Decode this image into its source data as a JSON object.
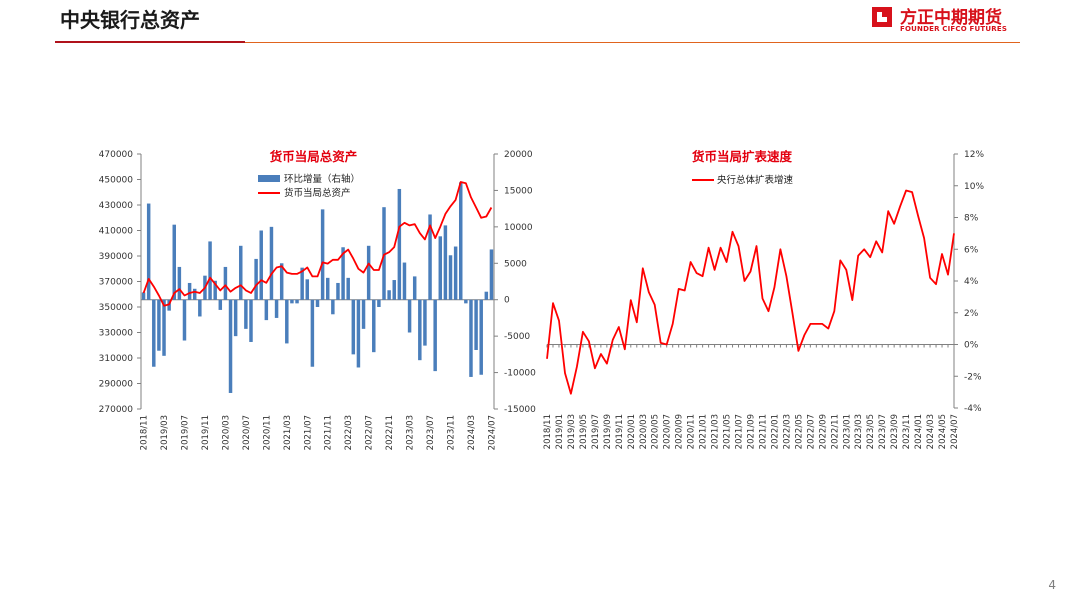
{
  "page": {
    "title": "中央银行总资产",
    "page_number": "4"
  },
  "logo": {
    "name_cn": "方正中期期货",
    "name_en": "FOUNDER CIFCO FUTURES",
    "brand_color": "#d7111b"
  },
  "colors": {
    "bar": "#4a7ebb",
    "line": "#ff0000",
    "title_red": "#e3000f",
    "rule_dark": "#b0121b",
    "rule_light": "#e0641e"
  },
  "x_tick_labels": [
    "2018/11",
    "2019/03",
    "2019/07",
    "2019/11",
    "2020/03",
    "2020/07",
    "2020/11",
    "2021/03",
    "2021/07",
    "2021/11",
    "2022/03",
    "2022/07",
    "2022/11",
    "2023/03",
    "2023/07",
    "2023/11",
    "2024/03",
    "2024/07"
  ],
  "x_tick_labels_right": [
    "2018/11",
    "2019/01",
    "2019/03",
    "2019/05",
    "2019/07",
    "2019/09",
    "2019/11",
    "2020/01",
    "2020/03",
    "2020/05",
    "2020/07",
    "2020/09",
    "2020/11",
    "2021/01",
    "2021/03",
    "2021/05",
    "2021/07",
    "2021/09",
    "2021/11",
    "2022/01",
    "2022/03",
    "2022/05",
    "2022/07",
    "2022/09",
    "2022/11",
    "2023/01",
    "2023/03",
    "2023/05",
    "2023/07",
    "2023/09",
    "2023/11",
    "2024/01",
    "2024/03",
    "2024/05",
    "2024/07"
  ],
  "chart_data": [
    {
      "type": "bar",
      "title": "货币当局总资产",
      "legend_position": "top-center",
      "grid": false,
      "x": [
        "2018/11",
        "2018/12",
        "2019/01",
        "2019/02",
        "2019/03",
        "2019/04",
        "2019/05",
        "2019/06",
        "2019/07",
        "2019/08",
        "2019/09",
        "2019/10",
        "2019/11",
        "2019/12",
        "2020/01",
        "2020/02",
        "2020/03",
        "2020/04",
        "2020/05",
        "2020/06",
        "2020/07",
        "2020/08",
        "2020/09",
        "2020/10",
        "2020/11",
        "2020/12",
        "2021/01",
        "2021/02",
        "2021/03",
        "2021/04",
        "2021/05",
        "2021/06",
        "2021/07",
        "2021/08",
        "2021/09",
        "2021/10",
        "2021/11",
        "2021/12",
        "2022/01",
        "2022/02",
        "2022/03",
        "2022/04",
        "2022/05",
        "2022/06",
        "2022/07",
        "2022/08",
        "2022/09",
        "2022/10",
        "2022/11",
        "2022/12",
        "2023/01",
        "2023/02",
        "2023/03",
        "2023/04",
        "2023/05",
        "2023/06",
        "2023/07",
        "2023/08",
        "2023/09",
        "2023/10",
        "2023/11",
        "2023/12",
        "2024/01",
        "2024/02",
        "2024/03",
        "2024/04",
        "2024/05",
        "2024/06",
        "2024/07"
      ],
      "y_left": {
        "min": 270000,
        "max": 470000,
        "ticks": [
          "470000",
          "450000",
          "430000",
          "410000",
          "390000",
          "370000",
          "350000",
          "330000",
          "310000",
          "290000",
          "270000"
        ]
      },
      "y_right": {
        "min": -15000,
        "max": 20000,
        "ticks": [
          "20000",
          "15000",
          "10000",
          "5000",
          "0",
          "-5000",
          "-10000",
          "-15000"
        ]
      },
      "series": [
        {
          "name": "环比增量（右轴）",
          "type": "bar",
          "axis": "right",
          "values": [
            1000,
            13200,
            -9200,
            -7000,
            -7700,
            -1500,
            10300,
            4500,
            -5600,
            2300,
            1500,
            -2300,
            3300,
            8000,
            2600,
            -1400,
            4500,
            -12800,
            -5000,
            7400,
            -4000,
            -5800,
            5600,
            9500,
            -2800,
            10000,
            -2500,
            5000,
            -6000,
            -500,
            -500,
            4400,
            2800,
            -9200,
            -1000,
            12400,
            3000,
            -2000,
            2300,
            7200,
            3000,
            -7500,
            -9300,
            -4000,
            7400,
            -7200,
            -1000,
            12700,
            1300,
            2700,
            15200,
            5100,
            -4500,
            3200,
            -8300,
            -6300,
            11700,
            -9800,
            8700,
            10200,
            6100,
            7300,
            16100,
            -500,
            -10600,
            -6900,
            -10300,
            1100,
            6900
          ]
        },
        {
          "name": "货币当局总资产",
          "type": "line",
          "axis": "left",
          "values": [
            361000,
            372000,
            366000,
            359000,
            351000,
            352000,
            361000,
            364000,
            359000,
            361000,
            362000,
            361000,
            365000,
            373000,
            368000,
            363000,
            367000,
            362000,
            365000,
            367000,
            363000,
            361000,
            367000,
            371000,
            369000,
            376000,
            381000,
            382000,
            377000,
            376000,
            376000,
            378000,
            381000,
            374000,
            374000,
            385000,
            384000,
            387000,
            387000,
            392000,
            395000,
            388000,
            380000,
            377000,
            384000,
            379000,
            379000,
            391000,
            393000,
            397000,
            413000,
            416000,
            414000,
            415000,
            408000,
            403000,
            414000,
            404000,
            413000,
            423000,
            429000,
            434000,
            448000,
            447000,
            436000,
            428000,
            420000,
            421000,
            428000
          ]
        }
      ]
    },
    {
      "type": "line",
      "title": "货币当局扩表速度",
      "legend_position": "top-center",
      "grid": false,
      "x": [
        "2018/11",
        "2018/12",
        "2019/01",
        "2019/02",
        "2019/03",
        "2019/04",
        "2019/05",
        "2019/06",
        "2019/07",
        "2019/08",
        "2019/09",
        "2019/10",
        "2019/11",
        "2019/12",
        "2020/01",
        "2020/02",
        "2020/03",
        "2020/04",
        "2020/05",
        "2020/06",
        "2020/07",
        "2020/08",
        "2020/09",
        "2020/10",
        "2020/11",
        "2020/12",
        "2021/01",
        "2021/02",
        "2021/03",
        "2021/04",
        "2021/05",
        "2021/06",
        "2021/07",
        "2021/08",
        "2021/09",
        "2021/10",
        "2021/11",
        "2021/12",
        "2022/01",
        "2022/02",
        "2022/03",
        "2022/04",
        "2022/05",
        "2022/06",
        "2022/07",
        "2022/08",
        "2022/09",
        "2022/10",
        "2022/11",
        "2022/12",
        "2023/01",
        "2023/02",
        "2023/03",
        "2023/04",
        "2023/05",
        "2023/06",
        "2023/07",
        "2023/08",
        "2023/09",
        "2023/10",
        "2023/11",
        "2023/12",
        "2024/01",
        "2024/02",
        "2024/03",
        "2024/04",
        "2024/05",
        "2024/06",
        "2024/07"
      ],
      "y": {
        "min": -4,
        "max": 12,
        "unit": "%",
        "ticks": [
          "12%",
          "10%",
          "8%",
          "6%",
          "4%",
          "2%",
          "0%",
          "-2%",
          "-4%"
        ]
      },
      "series": [
        {
          "name": "央行总体扩表增速",
          "values": [
            -0.9,
            2.6,
            1.5,
            -1.8,
            -3.1,
            -1.4,
            0.8,
            0.2,
            -1.5,
            -0.6,
            -1.2,
            0.3,
            1.1,
            -0.3,
            2.8,
            1.4,
            4.8,
            3.3,
            2.5,
            0.1,
            0.0,
            1.3,
            3.5,
            3.4,
            5.2,
            4.5,
            4.3,
            6.1,
            4.7,
            6.1,
            5.2,
            7.1,
            6.2,
            4.0,
            4.6,
            6.2,
            2.9,
            2.1,
            3.6,
            6.0,
            4.3,
            2.0,
            -0.4,
            0.6,
            1.3,
            1.3,
            1.3,
            1.0,
            2.1,
            5.3,
            4.7,
            2.8,
            5.6,
            6.0,
            5.5,
            6.5,
            5.8,
            8.4,
            7.6,
            8.7,
            9.7,
            9.6,
            8.1,
            6.7,
            4.2,
            3.8,
            5.7,
            4.4,
            7.0
          ]
        }
      ]
    }
  ]
}
